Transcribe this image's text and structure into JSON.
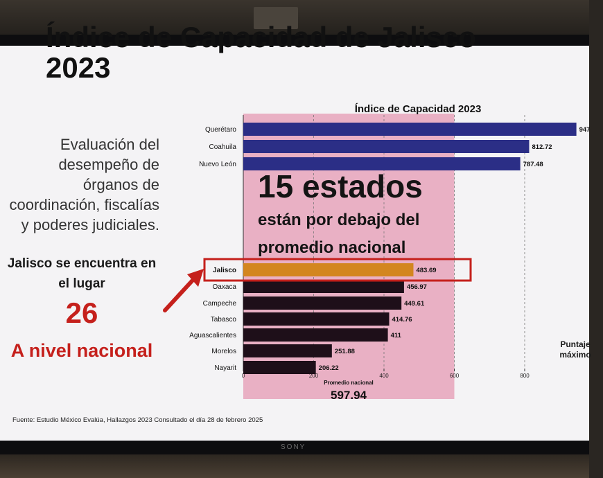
{
  "slide": {
    "title": "Índice de Capacidad de Jalisco\n2023",
    "description": "Evaluación del\ndesempeño de\nórganos de\ncoordinación, fiscalías\ny poderes judiciales.",
    "lugar_text": "Jalisco se encuentra en\nel lugar",
    "rank": "26",
    "nivel_text": "A nivel nacional",
    "overlay_big": "15 estados",
    "overlay_sub": "están por debajo del\npromedio nacional",
    "puntaje_label": "Puntaje\nmáximo",
    "source": "Fuente: Estudio México Evalúa, Hallazgos 2023 Consultado el día 28 de febrero 2025",
    "monitor_brand": "SONY"
  },
  "chart_data": {
    "type": "bar",
    "orientation": "horizontal",
    "title": "Índice de Capacidad 2023",
    "categories": [
      "Querétaro",
      "Coahuila",
      "Nuevo León",
      "Jalisco",
      "Oaxaca",
      "Campeche",
      "Tabasco",
      "Aguascalientes",
      "Morelos",
      "Nayarit"
    ],
    "values": [
      947,
      812.72,
      787.48,
      483.69,
      456.97,
      449.61,
      414.76,
      411,
      251.88,
      206.22
    ],
    "value_labels": [
      "947",
      "812.72",
      "787.48",
      "483.69",
      "456.97",
      "449.61",
      "414.76",
      "411",
      "251.88",
      "206.22"
    ],
    "highlight": "Jalisco",
    "xlim": [
      0,
      1000
    ],
    "ticks": [
      0,
      200,
      400,
      600,
      800
    ],
    "reference_line": {
      "label": "Promedio nacional",
      "value": 597.94
    },
    "colors": {
      "top": "#2b2e86",
      "bottom": "#1e0f19",
      "highlight": "#d3861f",
      "highlight_box": "#c5201c",
      "band": "#e0789a"
    }
  }
}
